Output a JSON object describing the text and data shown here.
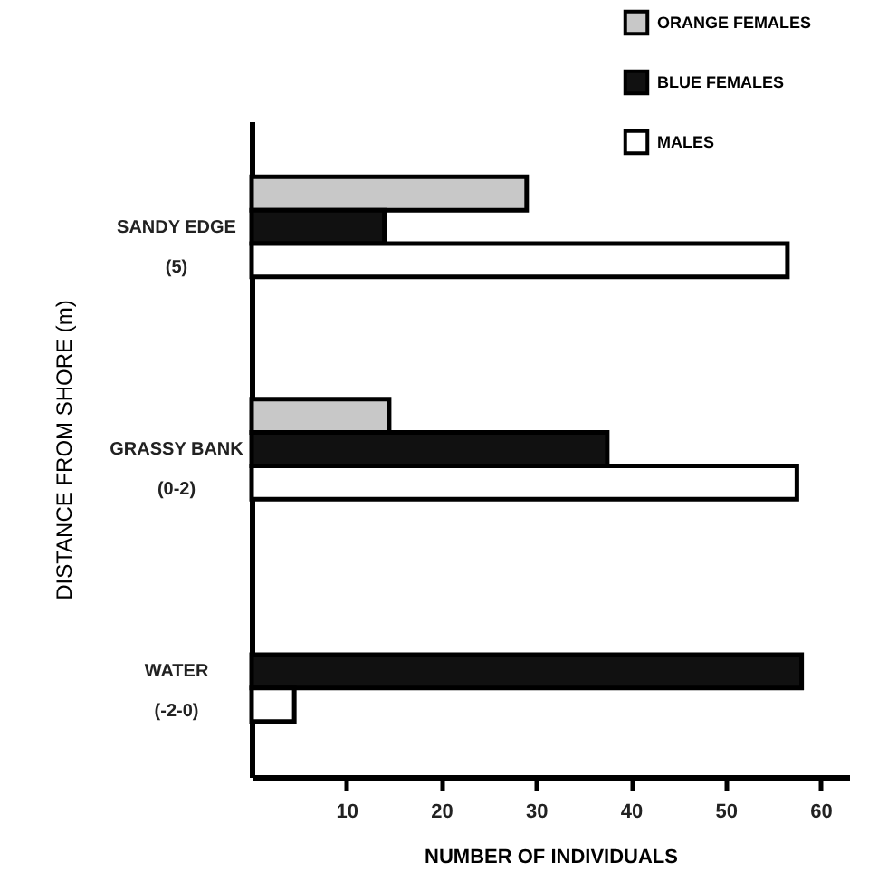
{
  "chart_data": {
    "type": "bar",
    "orientation": "horizontal",
    "categories": [
      "SANDY EDGE\n(5)",
      "GRASSY BANK\n(0-2)",
      "WATER\n(-2-0)"
    ],
    "series": [
      {
        "name": "ORANGE FEMALES",
        "color": "#c8c8c8",
        "values": [
          29,
          14.5,
          null
        ]
      },
      {
        "name": "BLUE FEMALES",
        "color": "#111111",
        "values": [
          14,
          37.5,
          58
        ]
      },
      {
        "name": "MALES",
        "color": "#ffffff",
        "values": [
          56.5,
          57.5,
          4.5
        ]
      }
    ],
    "xlim": [
      0,
      63
    ],
    "xticks": [
      10,
      20,
      30,
      40,
      50,
      60
    ],
    "xlabel": "NUMBER OF INDIVIDUALS",
    "ylabel": "DISTANCE FROM SHORE (m)",
    "legend": "top right",
    "grid": false
  }
}
